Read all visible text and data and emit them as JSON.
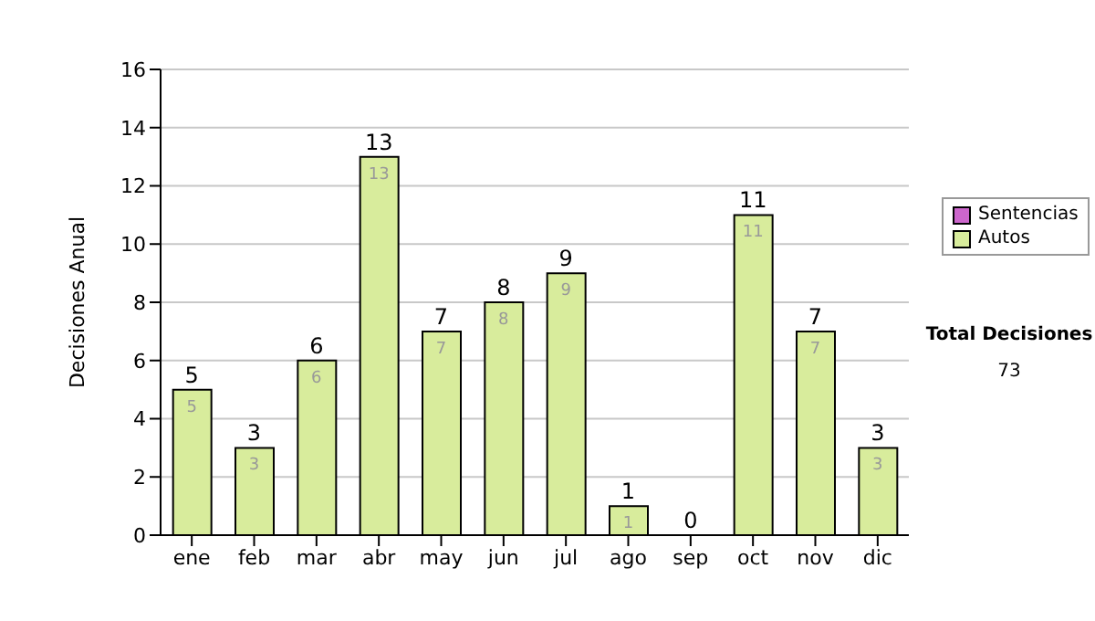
{
  "chart_data": {
    "type": "bar",
    "ylabel": "Decisiones Anual",
    "categories": [
      "ene",
      "feb",
      "mar",
      "abr",
      "may",
      "jun",
      "jul",
      "ago",
      "sep",
      "oct",
      "nov",
      "dic"
    ],
    "series": [
      {
        "name": "Sentencias",
        "color": "#cc66cc",
        "values": [
          0,
          0,
          0,
          0,
          0,
          0,
          0,
          0,
          0,
          0,
          0,
          0
        ]
      },
      {
        "name": "Autos",
        "color": "#d8ec9c",
        "values": [
          5,
          3,
          6,
          13,
          7,
          8,
          9,
          1,
          0,
          11,
          7,
          3
        ],
        "value_labels": [
          "5",
          "3",
          "6",
          "13",
          "7",
          "8",
          "9",
          "1",
          null,
          "11",
          "7",
          "3"
        ]
      }
    ],
    "stacked": true,
    "totals": [
      "5",
      "3",
      "6",
      "13",
      "7",
      "8",
      "9",
      "1",
      "0",
      "11",
      "7",
      "3"
    ],
    "ylim": [
      0,
      16
    ],
    "yticks": [
      0,
      2,
      4,
      6,
      8,
      10,
      12,
      14,
      16
    ],
    "grid": "y",
    "legend": "right",
    "annotations": [
      "Total Decisiones",
      "73"
    ]
  }
}
